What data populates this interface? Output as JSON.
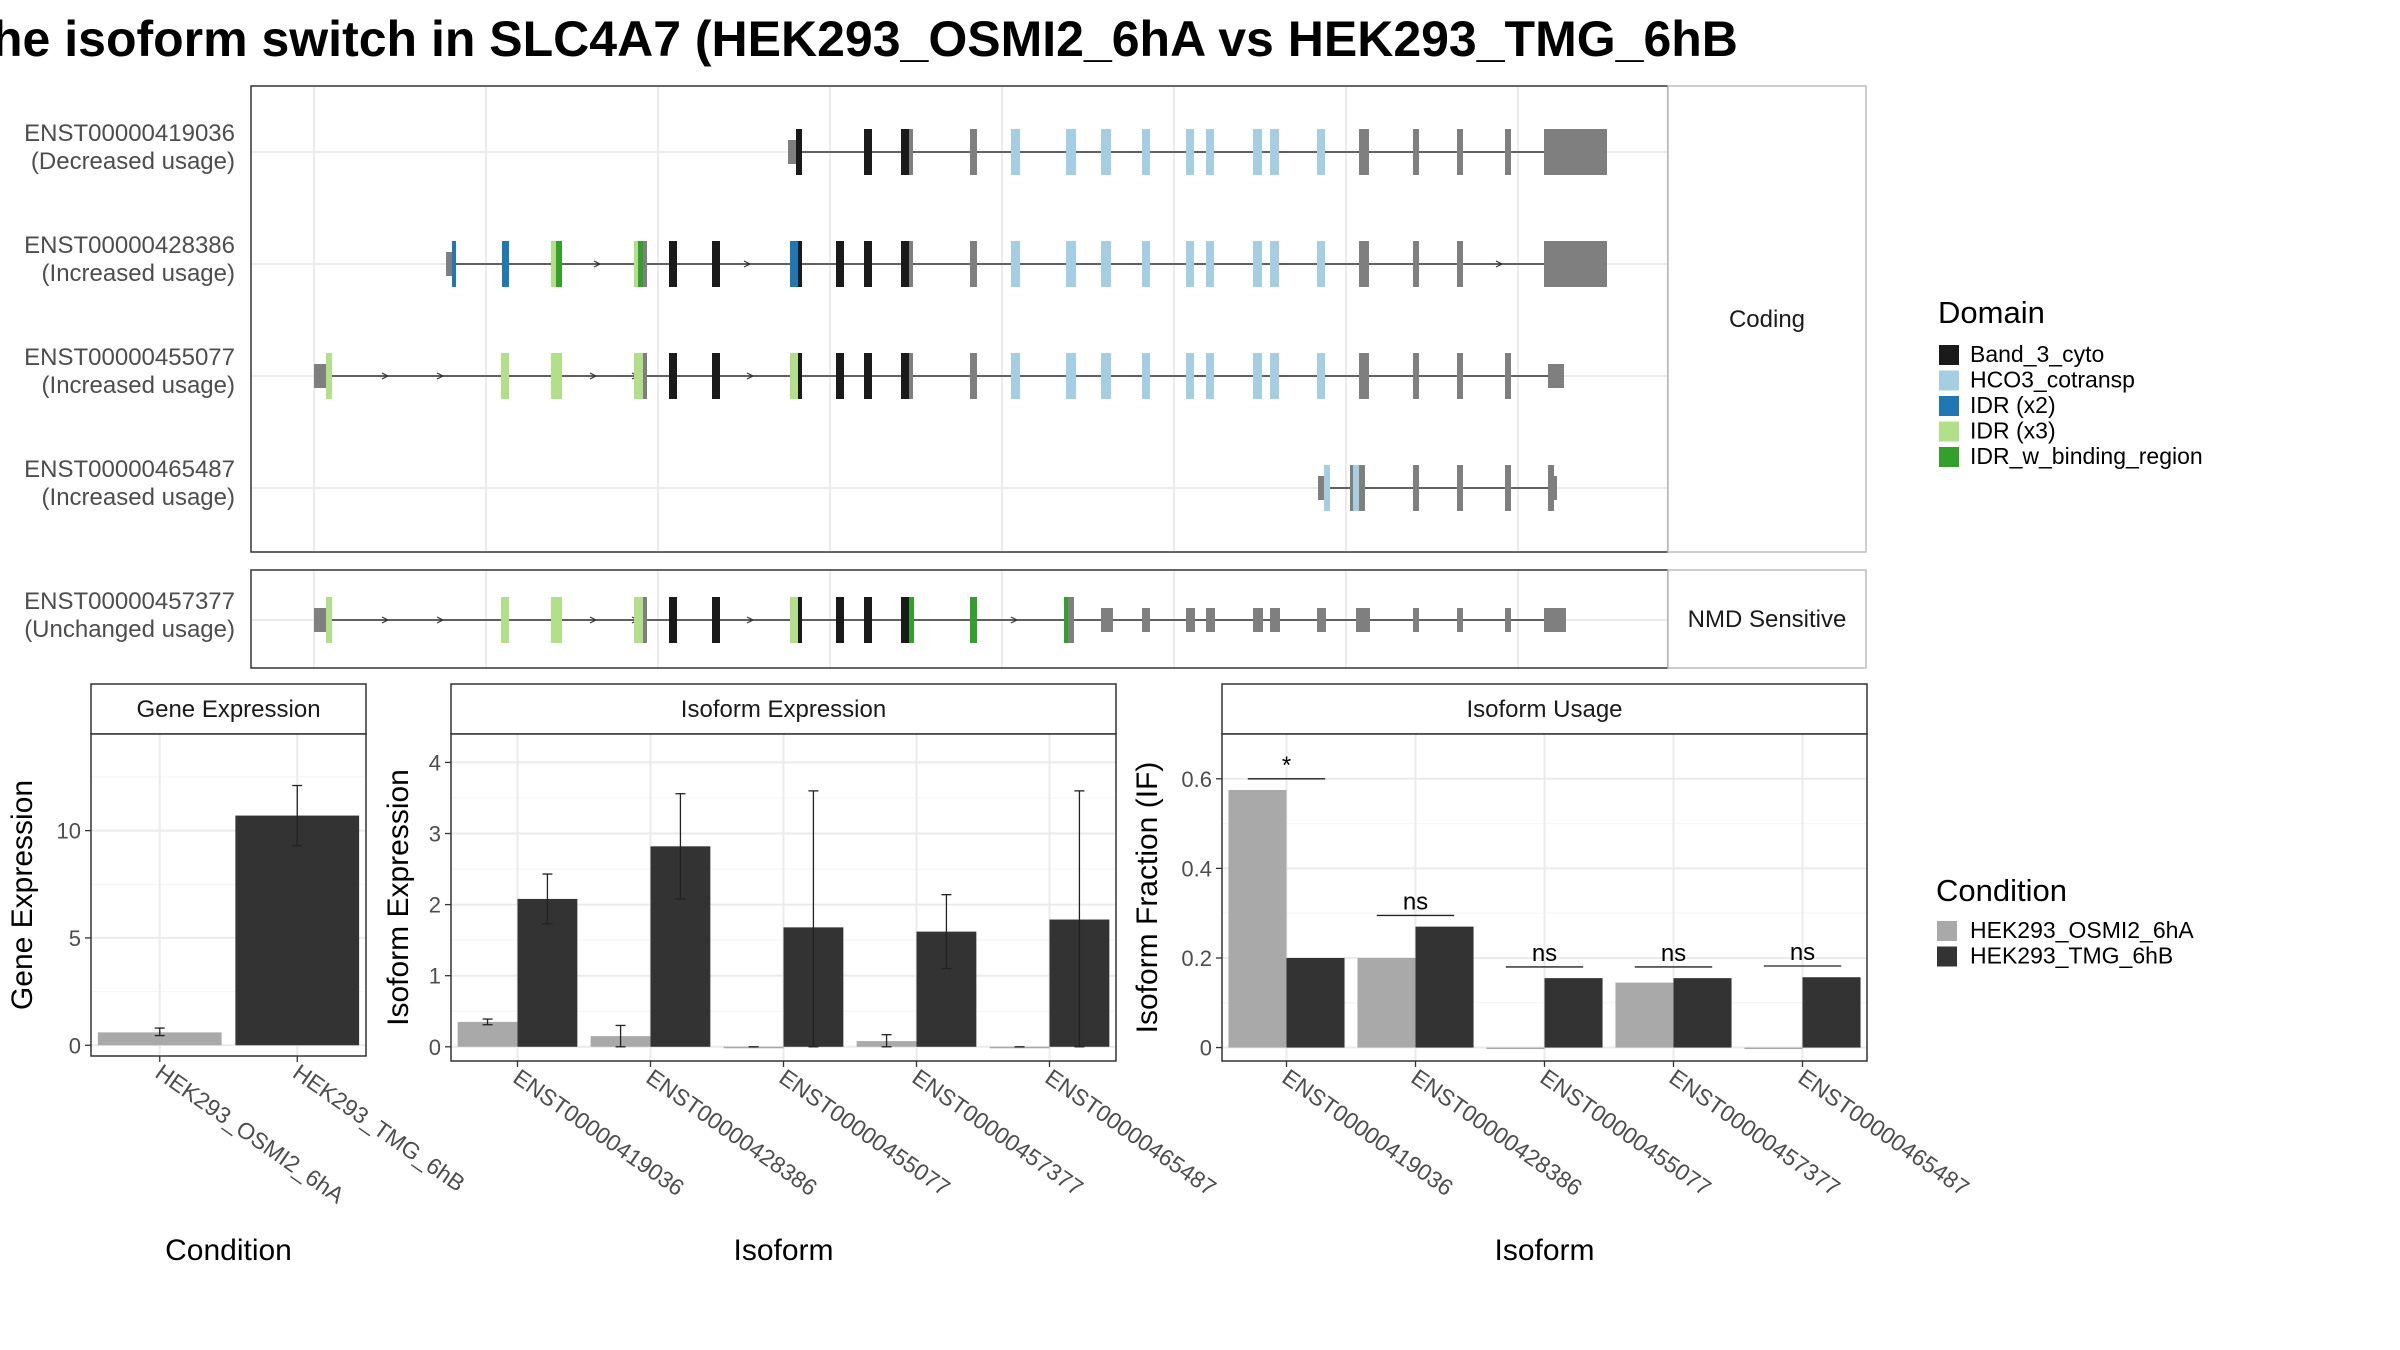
{
  "title": "he isoform switch in SLC4A7 (HEK293_OSMI2_6hA vs HEK293_TMG_6hB",
  "colors": {
    "Band_3_cyto": "#1a1a1a",
    "HCO3_cotransp": "#a6cee3",
    "IDR_x2": "#1f78b4",
    "IDR_x3": "#b2df8a",
    "IDR_w_binding_region": "#33a02c",
    "noncoding": "#7f7f7f",
    "condA": "#a9a9a9",
    "condB": "#333333"
  },
  "structure": {
    "strip_coding": "Coding",
    "strip_nmd": "NMD Sensitive",
    "isoforms": [
      {
        "id": "ENST00000419036",
        "usage": "(Decreased usage)",
        "group": "coding"
      },
      {
        "id": "ENST00000428386",
        "usage": "(Increased usage)",
        "group": "coding"
      },
      {
        "id": "ENST00000455077",
        "usage": "(Increased usage)",
        "group": "coding"
      },
      {
        "id": "ENST00000465487",
        "usage": "(Increased usage)",
        "group": "coding"
      },
      {
        "id": "ENST00000457377",
        "usage": "(Unchanged usage)",
        "group": "nmd"
      }
    ]
  },
  "legend_domain": {
    "title": "Domain",
    "items": [
      {
        "label": "Band_3_cyto",
        "color": "#1a1a1a"
      },
      {
        "label": "HCO3_cotransp",
        "color": "#a6cee3"
      },
      {
        "label": "IDR (x2)",
        "color": "#1f78b4"
      },
      {
        "label": "IDR (x3)",
        "color": "#b2df8a"
      },
      {
        "label": "IDR_w_binding_region",
        "color": "#33a02c"
      }
    ]
  },
  "legend_condition": {
    "title": "Condition",
    "items": [
      {
        "label": "HEK293_OSMI2_6hA",
        "color": "#a9a9a9"
      },
      {
        "label": "HEK293_TMG_6hB",
        "color": "#333333"
      }
    ]
  },
  "chart_data": [
    {
      "type": "bar",
      "title": "Gene Expression",
      "xlabel": "Condition",
      "ylabel": "Gene Expression",
      "categories": [
        "HEK293_OSMI2_6hA",
        "HEK293_TMG_6hB"
      ],
      "values": [
        0.6,
        10.7
      ],
      "error_low": [
        0.45,
        9.3
      ],
      "error_high": [
        0.8,
        12.1
      ],
      "yticks": [
        0,
        5,
        10
      ],
      "ylim": [
        -0.5,
        14.5
      ]
    },
    {
      "type": "bar",
      "title": "Isoform Expression",
      "xlabel": "Isoform",
      "ylabel": "Isoform Expression",
      "categories": [
        "ENST00000419036",
        "ENST00000428386",
        "ENST00000455077",
        "ENST00000457377",
        "ENST00000465487"
      ],
      "series": [
        {
          "name": "HEK293_OSMI2_6hA",
          "values": [
            0.35,
            0.15,
            0.0,
            0.08,
            0.0
          ],
          "error_low": [
            0.31,
            0.0,
            0.0,
            0.0,
            0.0
          ],
          "error_high": [
            0.39,
            0.3,
            0.0,
            0.17,
            0.0
          ]
        },
        {
          "name": "HEK293_TMG_6hB",
          "values": [
            2.08,
            2.82,
            1.68,
            1.62,
            1.79
          ],
          "error_low": [
            1.73,
            2.08,
            0.0,
            1.1,
            0.0
          ],
          "error_high": [
            2.43,
            3.56,
            3.6,
            2.14,
            3.6
          ]
        }
      ],
      "yticks": [
        0,
        1,
        2,
        3,
        4
      ],
      "ylim": [
        -0.2,
        4.4
      ]
    },
    {
      "type": "bar",
      "title": "Isoform Usage",
      "xlabel": "Isoform",
      "ylabel": "Isoform Fraction (IF)",
      "categories": [
        "ENST00000419036",
        "ENST00000428386",
        "ENST00000455077",
        "ENST00000457377",
        "ENST00000465487"
      ],
      "series": [
        {
          "name": "HEK293_OSMI2_6hA",
          "values": [
            0.575,
            0.2,
            0.0,
            0.145,
            0.0
          ]
        },
        {
          "name": "HEK293_TMG_6hB",
          "values": [
            0.2,
            0.27,
            0.155,
            0.155,
            0.157
          ]
        }
      ],
      "significance": [
        "*",
        "ns",
        "ns",
        "ns",
        "ns"
      ],
      "yticks": [
        0.0,
        0.2,
        0.4,
        0.6
      ],
      "ylim": [
        -0.03,
        0.7
      ]
    }
  ]
}
